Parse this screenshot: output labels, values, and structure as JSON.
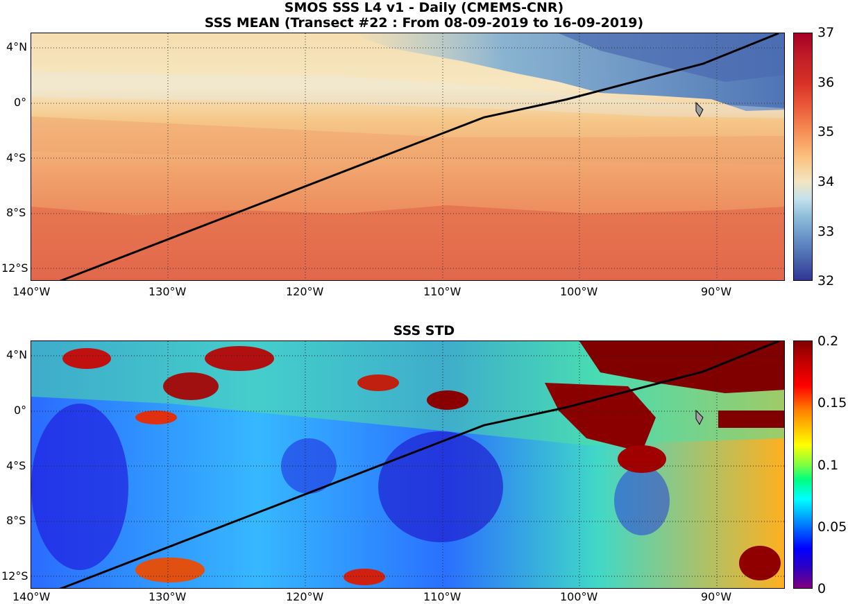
{
  "figure": {
    "title_line1": "SMOS SSS L4 v1 - Daily (CMEMS-CNR)",
    "title_line2": "SSS MEAN (Transect #22 : From 08-09-2019 to 16-09-2019)",
    "title_bottom": "SSS STD"
  },
  "axes": {
    "lon_labels": [
      "140°W",
      "130°W",
      "120°W",
      "110°W",
      "100°W",
      "90°W"
    ],
    "lat_labels": [
      "4°N",
      "0°",
      "4°S",
      "8°S",
      "12°S"
    ],
    "lon_range": [
      -140,
      -85
    ],
    "lat_range": [
      -13,
      5
    ]
  },
  "colorbar_mean": {
    "range": [
      32,
      37
    ],
    "tick_labels": [
      "37",
      "36",
      "35",
      "34",
      "33",
      "32"
    ],
    "colormap": "red-yellow-blue (reversed)"
  },
  "colorbar_std": {
    "range": [
      0,
      0.2
    ],
    "tick_labels": [
      "0.2",
      "0.15",
      "0.1",
      "0.05",
      "0"
    ],
    "colormap": "jet"
  },
  "transect": {
    "points": [
      [
        -138,
        -13
      ],
      [
        -107,
        -1.1
      ],
      [
        -101,
        0.2
      ],
      [
        -91,
        2.8
      ],
      [
        -85.5,
        5
      ]
    ]
  },
  "colors": {
    "mean_low": "#313695",
    "mean_mid": "#f3e1b0",
    "mean_high": "#a50026",
    "std_low": "#1010ff",
    "std_high": "#800000",
    "transect": "#000000",
    "land": "#a0a0a0"
  }
}
